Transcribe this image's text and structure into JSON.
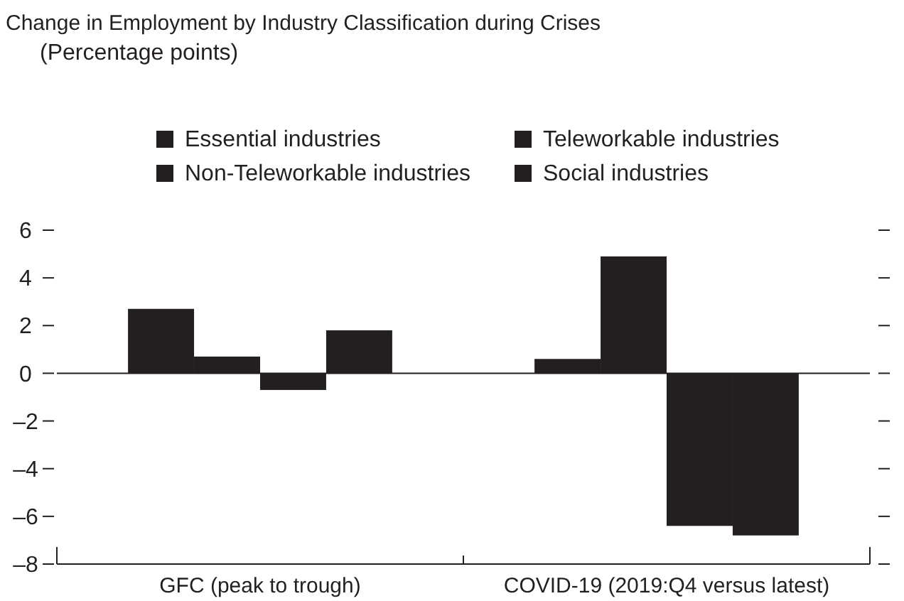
{
  "chart_data": {
    "type": "bar",
    "title": "Change in Employment by Industry Classification during Crises",
    "subtitle": "(Percentage points)",
    "categories": [
      "GFC (peak to trough)",
      "COVID-19 (2019:Q4 versus latest)"
    ],
    "series": [
      {
        "name": "Essential industries",
        "color": "#231f20",
        "values": [
          2.7,
          0.6
        ]
      },
      {
        "name": "Teleworkable industries",
        "color": "#231f20",
        "values": [
          0.7,
          4.9
        ]
      },
      {
        "name": "Non-Teleworkable industries",
        "color": "#231f20",
        "values": [
          -0.7,
          -6.4
        ]
      },
      {
        "name": "Social industries",
        "color": "#231f20",
        "values": [
          1.8,
          -6.8
        ]
      }
    ],
    "ylim": [
      -8,
      6
    ],
    "yticks": [
      {
        "value": -8,
        "label": "–8"
      },
      {
        "value": -6,
        "label": "–6"
      },
      {
        "value": -4,
        "label": "–4"
      },
      {
        "value": -2,
        "label": "–2"
      },
      0,
      2,
      4,
      6
    ],
    "legend": "top"
  }
}
